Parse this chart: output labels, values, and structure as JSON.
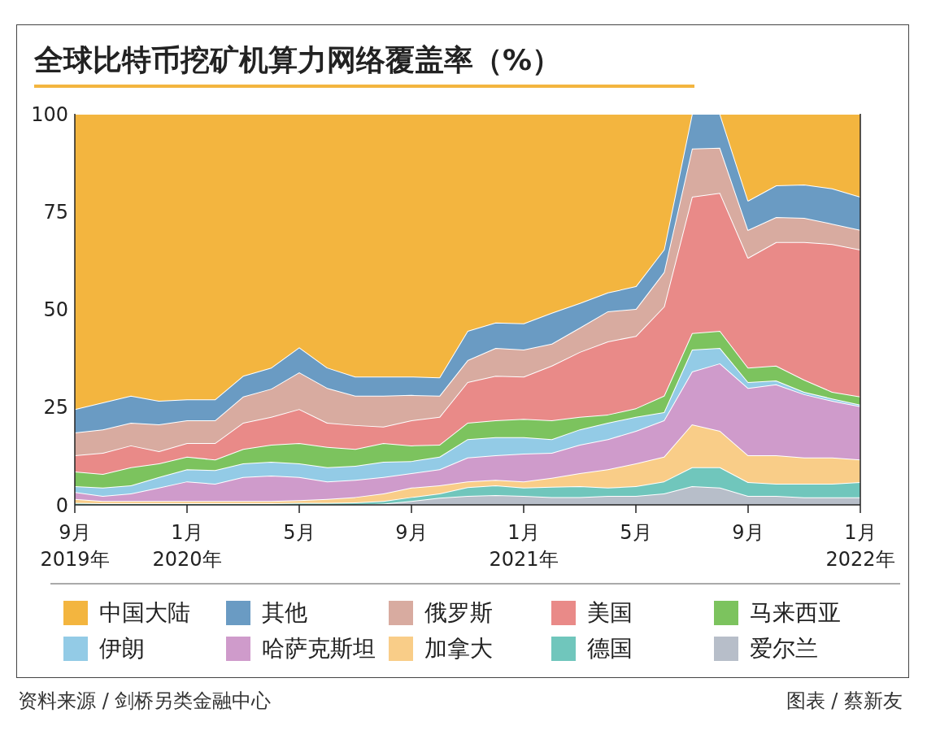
{
  "chart_data": {
    "type": "area",
    "title": "全球比特币挖矿机算力网络覆盖率（%）",
    "stacked": true,
    "legend": "bottom",
    "x": [
      "2019-09",
      "2019-10",
      "2019-11",
      "2019-12",
      "2020-01",
      "2020-02",
      "2020-03",
      "2020-04",
      "2020-05",
      "2020-06",
      "2020-07",
      "2020-08",
      "2020-09",
      "2020-10",
      "2020-11",
      "2020-12",
      "2021-01",
      "2021-02",
      "2021-03",
      "2021-04",
      "2021-05",
      "2021-06",
      "2021-07",
      "2021-08",
      "2021-09",
      "2021-10",
      "2021-11",
      "2021-12",
      "2022-01"
    ],
    "xlim": [
      "2019-09",
      "2022-01"
    ],
    "xticks": [
      {
        "value": "2019-09",
        "label": "9月\n2019年"
      },
      {
        "value": "2020-01",
        "label": "1月\n2020年"
      },
      {
        "value": "2020-05",
        "label": "5月"
      },
      {
        "value": "2020-09",
        "label": "9月"
      },
      {
        "value": "2021-01",
        "label": "1月\n2021年"
      },
      {
        "value": "2021-05",
        "label": "5月"
      },
      {
        "value": "2021-09",
        "label": "9月"
      },
      {
        "value": "2022-01",
        "label": "1月\n2022年"
      }
    ],
    "ylim": [
      0,
      100
    ],
    "yticks": [
      0,
      25,
      50,
      75,
      100
    ],
    "series": [
      {
        "name": "爱尔兰",
        "color": "#b7bec9",
        "values": [
          0,
          0,
          0,
          0,
          0,
          0,
          0,
          0,
          0,
          0,
          0,
          0.3,
          1.0,
          1.8,
          2.3,
          2.5,
          2.3,
          2.0,
          2.0,
          2.3,
          2.3,
          2.9,
          4.8,
          4.4,
          2.3,
          2.3,
          1.9,
          1.9,
          1.9
        ]
      },
      {
        "name": "德国",
        "color": "#70c6bc",
        "values": [
          0.5,
          0.4,
          0.4,
          0.4,
          0.4,
          0.4,
          0.4,
          0.4,
          0.5,
          0.5,
          0.6,
          0.7,
          1.0,
          1.1,
          2.2,
          2.5,
          2.1,
          2.6,
          2.8,
          2.1,
          2.5,
          3.1,
          4.8,
          5.2,
          3.5,
          3.1,
          3.5,
          3.5,
          3.9
        ]
      },
      {
        "name": "加拿大",
        "color": "#f9cd88",
        "values": [
          1.0,
          0.6,
          0.6,
          0.6,
          0.6,
          0.6,
          0.6,
          0.6,
          0.7,
          1.0,
          1.4,
          1.9,
          2.4,
          2.1,
          1.5,
          1.4,
          1.6,
          2.3,
          3.3,
          4.7,
          5.8,
          6.3,
          11.0,
          9.3,
          6.9,
          7.3,
          6.7,
          6.7,
          5.8
        ]
      },
      {
        "name": "哈萨克斯坦",
        "color": "#cf9bcb",
        "values": [
          1.8,
          1.3,
          1.9,
          3.4,
          5.0,
          4.4,
          6.1,
          6.5,
          5.9,
          4.5,
          4.4,
          4.2,
          3.7,
          4.1,
          6.1,
          6.3,
          7.1,
          6.4,
          7.3,
          7.7,
          8.3,
          9.3,
          13.5,
          17.3,
          17.2,
          18.1,
          16.2,
          14.5,
          13.6
        ]
      },
      {
        "name": "伊朗",
        "color": "#93cbe6",
        "values": [
          1.5,
          2.1,
          2.1,
          2.7,
          3.1,
          3.5,
          3.5,
          3.5,
          3.5,
          3.6,
          3.6,
          3.9,
          3.1,
          3.2,
          4.7,
          4.6,
          4.2,
          3.5,
          3.9,
          4.2,
          3.6,
          2.1,
          5.6,
          3.9,
          1.5,
          1.0,
          0.6,
          0.6,
          0.4
        ]
      },
      {
        "name": "马来西亚",
        "color": "#7cc35e",
        "values": [
          3.7,
          3.5,
          4.6,
          3.5,
          3.2,
          2.7,
          3.7,
          4.4,
          5.2,
          5.2,
          4.3,
          4.8,
          4.0,
          3.1,
          4.2,
          4.3,
          4.7,
          4.8,
          3.2,
          2.1,
          2.2,
          4.2,
          4.2,
          4.4,
          3.7,
          3.8,
          3.1,
          1.7,
          2.1
        ]
      },
      {
        "name": "美国",
        "color": "#e98a88",
        "values": [
          4.2,
          5.4,
          5.6,
          3.1,
          3.5,
          4.2,
          6.7,
          7.1,
          8.7,
          6.2,
          6.1,
          4.2,
          6.4,
          7.1,
          10.4,
          11.4,
          10.8,
          14.0,
          16.6,
          18.7,
          18.5,
          22.8,
          34.9,
          35.3,
          28.1,
          31.6,
          35.2,
          37.8,
          37.6
        ]
      },
      {
        "name": "俄罗斯",
        "color": "#d8aba0",
        "values": [
          5.8,
          6.0,
          5.8,
          6.9,
          5.8,
          5.8,
          6.7,
          7.2,
          9.4,
          8.9,
          7.5,
          7.9,
          6.5,
          5.4,
          5.6,
          7.1,
          6.9,
          5.6,
          6.2,
          7.7,
          6.9,
          8.8,
          12.3,
          11.5,
          7.1,
          6.4,
          6.2,
          5.2,
          5.0
        ]
      },
      {
        "name": "其他",
        "color": "#6a9bc3",
        "values": [
          6.0,
          6.9,
          6.9,
          6.0,
          5.4,
          5.4,
          5.3,
          5.4,
          6.4,
          5.2,
          4.9,
          4.9,
          4.7,
          4.7,
          7.5,
          6.5,
          6.7,
          7.9,
          6.3,
          4.8,
          5.8,
          5.8,
          8.9,
          8.7,
          7.5,
          8.1,
          8.5,
          9.0,
          8.5
        ]
      },
      {
        "name": "中国大陆",
        "color": "#f3b53f",
        "values": [
          75.5,
          73.8,
          72.1,
          73.4,
          73.0,
          73.0,
          67.0,
          64.9,
          59.7,
          64.9,
          67.2,
          67.2,
          67.2,
          67.4,
          55.5,
          53.4,
          53.6,
          50.9,
          48.4,
          45.7,
          44.1,
          34.7,
          0,
          0,
          22.2,
          18.3,
          18.1,
          19.1,
          21.2
        ]
      }
    ],
    "annotations": [
      "资料来源 / 剑桥另类金融中心",
      "图表 / 蔡新友"
    ]
  }
}
